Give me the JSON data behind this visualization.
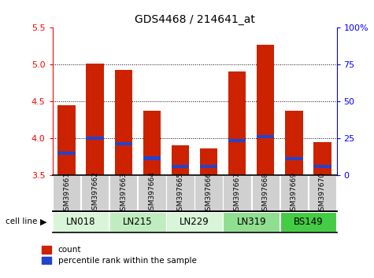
{
  "title": "GDS4468 / 214641_at",
  "samples": [
    "GSM397661",
    "GSM397662",
    "GSM397663",
    "GSM397664",
    "GSM397665",
    "GSM397666",
    "GSM397667",
    "GSM397668",
    "GSM397669",
    "GSM397670"
  ],
  "count_values": [
    4.45,
    5.01,
    4.93,
    4.37,
    3.91,
    3.86,
    4.91,
    5.27,
    4.37,
    3.95
  ],
  "percentile_values": [
    3.8,
    4.0,
    3.93,
    3.73,
    3.62,
    3.62,
    3.97,
    4.02,
    3.72,
    3.62
  ],
  "cell_lines": [
    {
      "name": "LN018",
      "start": 0,
      "end": 2,
      "color": "#d8f5d8"
    },
    {
      "name": "LN215",
      "start": 2,
      "end": 4,
      "color": "#c0edc0"
    },
    {
      "name": "LN229",
      "start": 4,
      "end": 6,
      "color": "#d8f5d8"
    },
    {
      "name": "LN319",
      "start": 6,
      "end": 8,
      "color": "#90de90"
    },
    {
      "name": "BS149",
      "start": 8,
      "end": 10,
      "color": "#44cc44"
    }
  ],
  "ylim_left": [
    3.5,
    5.5
  ],
  "ylim_right": [
    0,
    100
  ],
  "yticks_left": [
    3.5,
    4.0,
    4.5,
    5.0,
    5.5
  ],
  "yticks_right": [
    0,
    25,
    50,
    75,
    100
  ],
  "ytick_labels_right": [
    "0",
    "25",
    "50",
    "75",
    "100%"
  ],
  "grid_lines": [
    4.0,
    4.5,
    5.0
  ],
  "bar_color": "#cc2200",
  "blue_color": "#2244cc",
  "base": 3.5,
  "bar_width": 0.62,
  "blue_bar_height": 0.045,
  "label_gray": "#d0d0d0",
  "background_color": "#ffffff",
  "left_spine_color": "red",
  "right_spine_color": "blue"
}
